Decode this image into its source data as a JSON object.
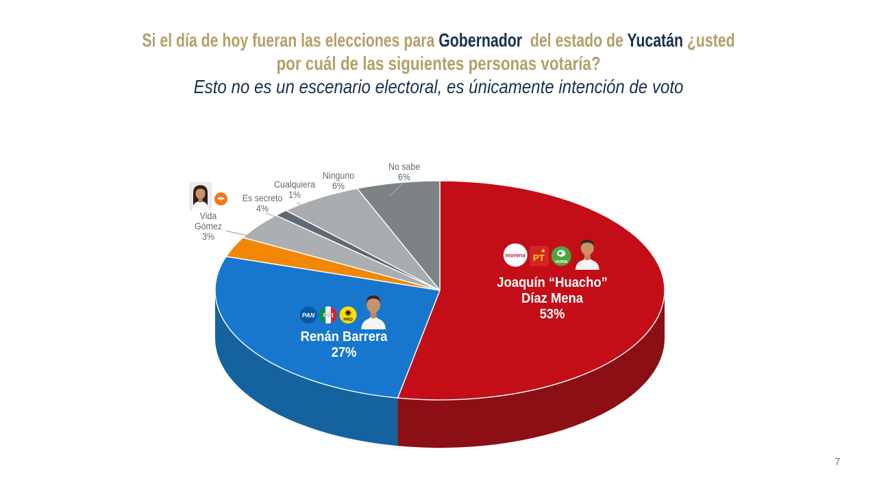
{
  "slide": {
    "title": {
      "line1_segments": [
        {
          "text": "Si el día de hoy fueran las elecciones para "
        },
        {
          "text": "Gobernador"
        },
        {
          "text": "  del estado de "
        },
        {
          "text": "Yucatán"
        },
        {
          "text": " ¿usted"
        }
      ],
      "line2": "por cuál de las siguientes personas votaría?",
      "line3": "Esto no es un escenario electoral, es únicamente intención de voto"
    },
    "page_number": "7"
  },
  "colors": {
    "title_gold": "#B2A068",
    "title_navy": "#17304E",
    "label_gray": "#64686C",
    "callout_text": "#FFFFFF",
    "background": "#FFFFFF"
  },
  "logos": {
    "pan": "PAN",
    "pri": "PRI",
    "prd": "PRD",
    "morena": "morena",
    "pt": "PT",
    "verde": "VERDE"
  },
  "chart_data": {
    "type": "pie",
    "style": "3d",
    "unit": "%",
    "total": 100,
    "legend_position": "none",
    "slices": [
      {
        "id": "diaz-mena",
        "label": "Joaquín “Huacho” Díaz Mena",
        "name_l1": "Joaquín “Huacho”",
        "name_l2": "Díaz Mena",
        "value": 53,
        "pct": "53%",
        "color": "#C30E17",
        "side_color": "#8B0F15",
        "parties": [
          "morena",
          "PT",
          "VERDE"
        ]
      },
      {
        "id": "barrera",
        "label": "Renán Barrera",
        "value": 27,
        "pct": "27%",
        "color": "#1777CE",
        "side_color": "#14639F",
        "parties": [
          "PAN",
          "PRI",
          "PRD"
        ]
      },
      {
        "id": "gomez",
        "label": "Vida Gómez",
        "name_l1": "Vida",
        "name_l2": "Gómez",
        "value": 3,
        "pct": "3%",
        "color": "#F28705",
        "parties": [
          "MC"
        ]
      },
      {
        "id": "es-secreto",
        "label": "Es secreto",
        "value": 4,
        "pct": "4%",
        "color": "#ACAFB1"
      },
      {
        "id": "cualquiera",
        "label": "Cualquiera",
        "value": 1,
        "pct": "1%",
        "color": "#5E6974"
      },
      {
        "id": "ninguno",
        "label": "Ninguno",
        "value": 6,
        "pct": "6%",
        "color": "#A9ACAF"
      },
      {
        "id": "no-sabe",
        "label": "No sabe",
        "value": 6,
        "pct": "6%",
        "color": "#7D8286"
      }
    ]
  }
}
